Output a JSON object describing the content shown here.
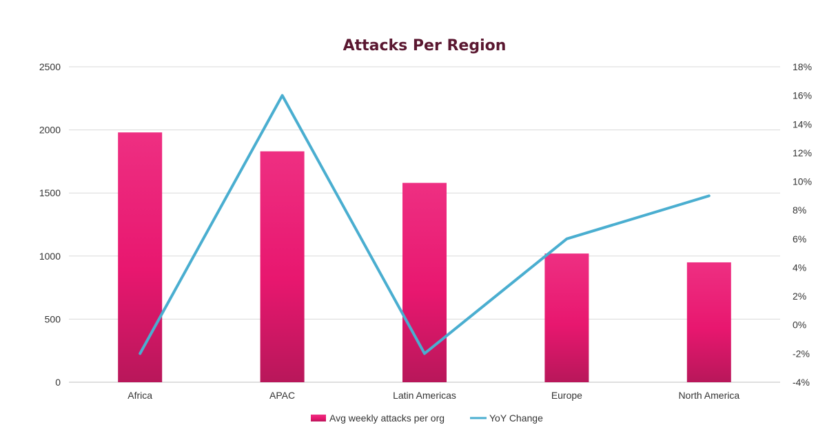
{
  "chart_data": {
    "type": "bar",
    "title": "Attacks Per Region",
    "categories": [
      "Africa",
      "APAC",
      "Latin Americas",
      "Europe",
      "North America"
    ],
    "series": [
      {
        "name": "Avg weekly attacks per org",
        "type": "bar",
        "axis": "left",
        "color": "#e8176f",
        "values": [
          1980,
          1830,
          1580,
          1020,
          950
        ]
      },
      {
        "name": "YoY Change",
        "type": "line",
        "axis": "right",
        "color": "#4aaed0",
        "values": [
          -2,
          16,
          -2,
          6,
          9
        ]
      }
    ],
    "y_left": {
      "range": [
        0,
        2500
      ],
      "ticks": [
        0,
        500,
        1000,
        1500,
        2000,
        2500
      ],
      "tick_labels": [
        "0",
        "500",
        "1000",
        "1500",
        "2000",
        "2500"
      ]
    },
    "y_right": {
      "range": [
        -4,
        18
      ],
      "ticks": [
        -4,
        -2,
        0,
        2,
        4,
        6,
        8,
        10,
        12,
        14,
        16,
        18
      ],
      "tick_labels": [
        "-4%",
        "-2%",
        "0%",
        "2%",
        "4%",
        "6%",
        "8%",
        "10%",
        "12%",
        "14%",
        "16%",
        "18%"
      ]
    },
    "grid": true,
    "legend": "bottom"
  }
}
